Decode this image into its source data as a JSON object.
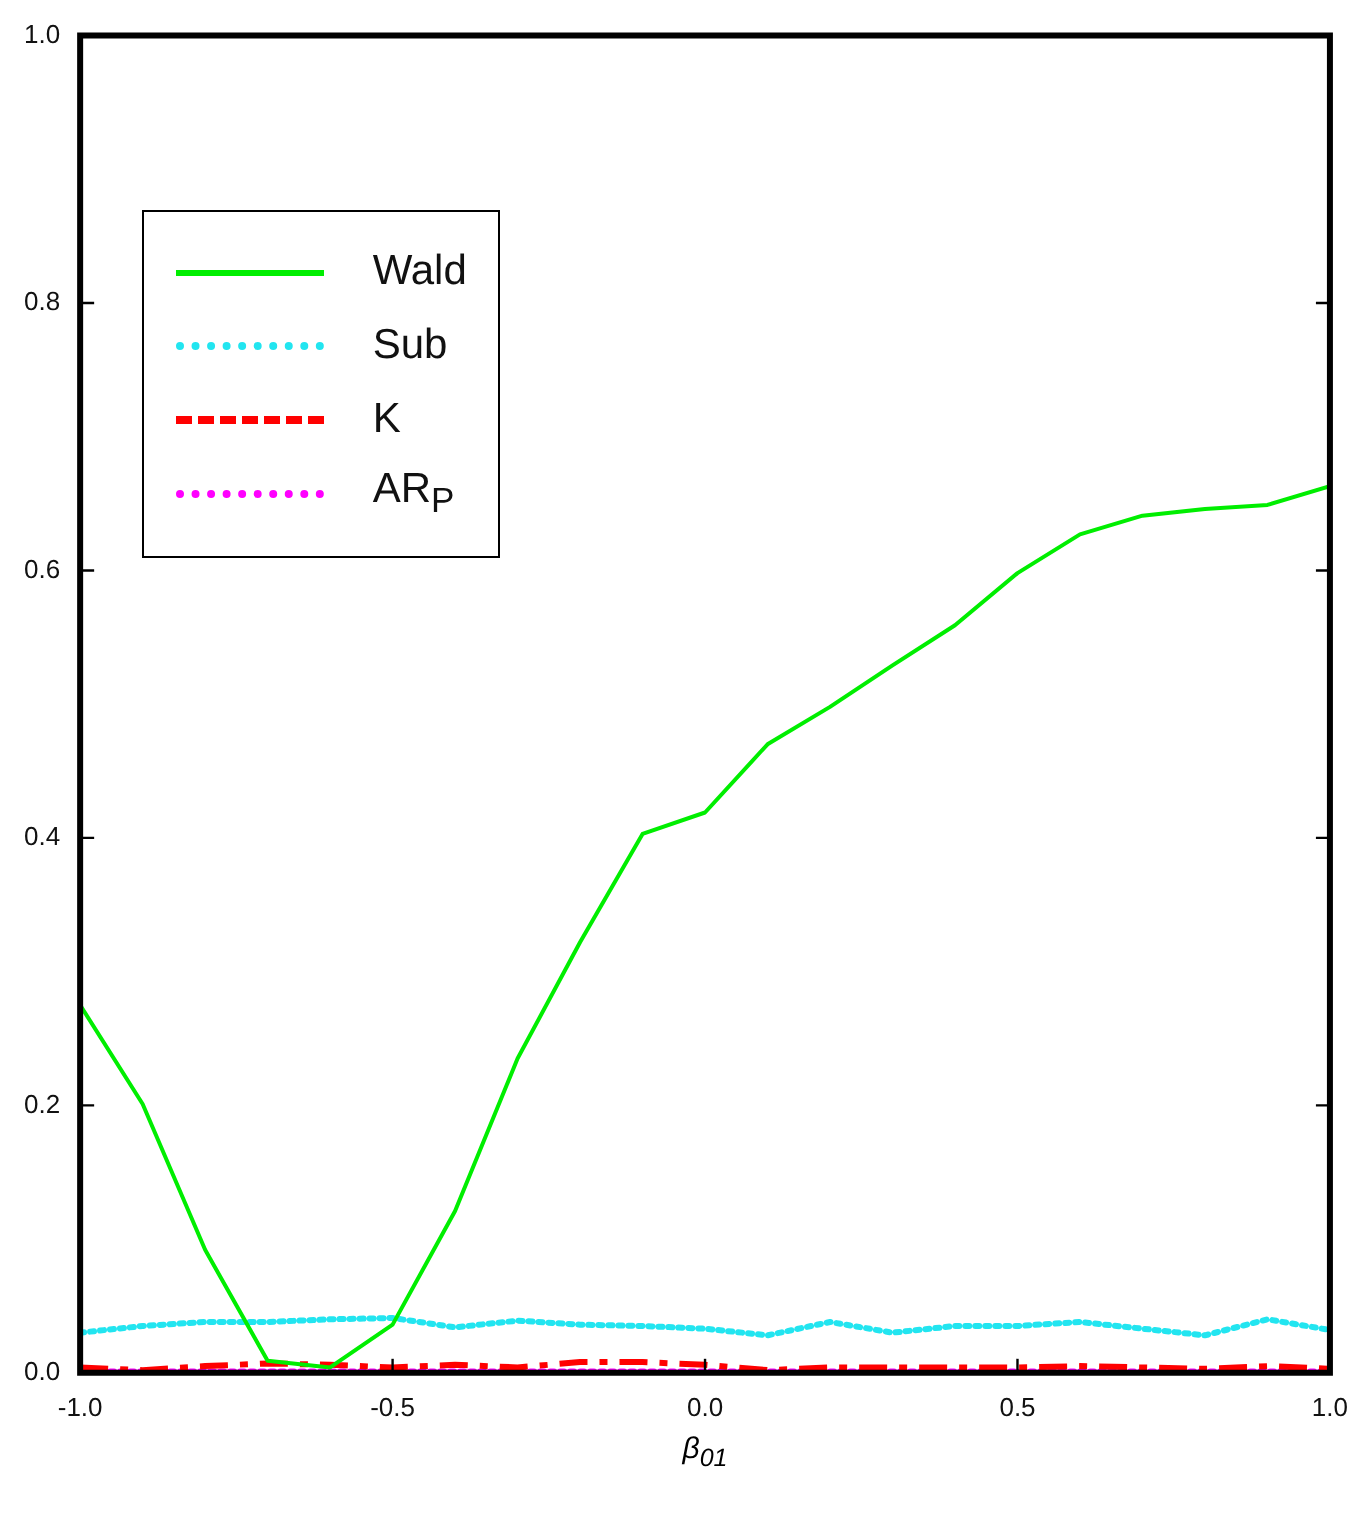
{
  "chart_data": {
    "type": "line",
    "xlabel": "β$_{01}$",
    "x": [
      -1.0,
      -0.9,
      -0.8,
      -0.7,
      -0.6,
      -0.5,
      -0.4,
      -0.3,
      -0.2,
      -0.1,
      0.0,
      0.1,
      0.2,
      0.3,
      0.4,
      0.5,
      0.6,
      0.7,
      0.8,
      0.9,
      1.0
    ],
    "xlim": [
      -1.0,
      1.0
    ],
    "ylim": [
      0,
      1.0
    ],
    "xticks": [
      {
        "value": -1,
        "label": "-1.0"
      },
      {
        "value": -0.5,
        "label": "-0.5"
      },
      {
        "value": 0,
        "label": "0.0"
      },
      {
        "value": 0.5,
        "label": "0.5"
      },
      {
        "value": 1,
        "label": "1.0"
      }
    ],
    "yticks": [
      {
        "value": 0,
        "label": "0.0"
      },
      {
        "value": 0.2,
        "label": "0.2"
      },
      {
        "value": 0.4,
        "label": "0.4"
      },
      {
        "value": 0.6,
        "label": "0.6"
      },
      {
        "value": 0.8,
        "label": "0.8"
      },
      {
        "value": 1,
        "label": "1.0"
      }
    ],
    "grid": false,
    "legend": "top left",
    "marker": "none",
    "series": [
      {
        "name": "Wald",
        "color": "#00ee00",
        "line_style": "solid",
        "values": [
          0.275,
          0.201,
          0.092,
          0.009,
          0.004,
          0.036,
          0.121,
          0.235,
          0.322,
          0.403,
          0.419,
          0.47,
          0.498,
          0.529,
          0.559,
          0.598,
          0.627,
          0.641,
          0.646,
          0.649,
          0.663
        ]
      },
      {
        "name": "Sub",
        "color": "#22e5f0",
        "line_style": "dotted",
        "values": [
          0.03,
          0.035,
          0.038,
          0.038,
          0.04,
          0.041,
          0.034,
          0.039,
          0.036,
          0.035,
          0.033,
          0.028,
          0.038,
          0.03,
          0.035,
          0.035,
          0.038,
          0.033,
          0.028,
          0.04,
          0.032
        ]
      },
      {
        "name": "K",
        "color": "#ff0000",
        "line_style": "dashed",
        "values": [
          0.004,
          0.002,
          0.005,
          0.007,
          0.006,
          0.004,
          0.006,
          0.004,
          0.008,
          0.008,
          0.006,
          0.002,
          0.004,
          0.004,
          0.004,
          0.004,
          0.005,
          0.004,
          0.003,
          0.005,
          0.003
        ]
      },
      {
        "name": "AR$_{P}$",
        "color": "#ff00ff",
        "line_style": "dotted",
        "values": [
          0.001,
          0.001,
          0.001,
          0.001,
          0.001,
          0.001,
          0.001,
          0.001,
          0.001,
          0.001,
          0.001,
          0.001,
          0.001,
          0.001,
          0.001,
          0.001,
          0.001,
          0.001,
          0.001,
          0.001,
          0.001
        ]
      }
    ]
  }
}
